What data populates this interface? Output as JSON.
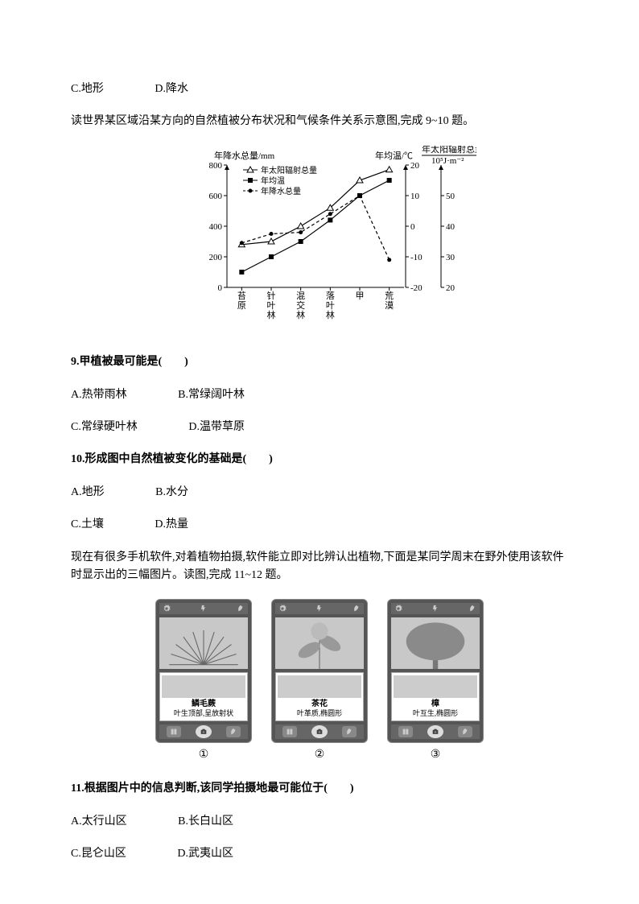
{
  "options_prev": {
    "c": "C.地形",
    "d": "D.降水"
  },
  "intro1": "读世界某区域沿某方向的自然植被分布状况和气候条件关系示意图,完成 9~10 题。",
  "chart": {
    "y1_title": "年降水总量/mm",
    "y2_title": "年均温/℃",
    "y3_title_a": "年太阳辐射总量",
    "y3_title_b": "10⁵J·m⁻²",
    "y1_ticks": [
      "0",
      "200",
      "400",
      "600",
      "800"
    ],
    "y2_ticks": [
      "-20",
      "-10",
      "0",
      "10",
      "20"
    ],
    "y3_ticks": [
      "20",
      "30",
      "40",
      "50"
    ],
    "x_labels": [
      "苔原",
      "针叶林",
      "混交林",
      "落叶林",
      "甲",
      "荒漠"
    ],
    "legend": [
      "年太阳辐射总量",
      "年均温",
      "年降水总量"
    ],
    "colors": {
      "axis": "#000",
      "radiation": "#000",
      "temp": "#000",
      "precip": "#000",
      "bg": "#ffffff"
    },
    "radiation_pts": [
      [
        0,
        280
      ],
      [
        1,
        300
      ],
      [
        2,
        400
      ],
      [
        3,
        520
      ],
      [
        4,
        700
      ],
      [
        5,
        770
      ]
    ],
    "temp_pts": [
      [
        0,
        100
      ],
      [
        1,
        200
      ],
      [
        2,
        300
      ],
      [
        3,
        440
      ],
      [
        4,
        600
      ],
      [
        5,
        700
      ]
    ],
    "precip_pts": [
      [
        0,
        290
      ],
      [
        1,
        350
      ],
      [
        2,
        360
      ],
      [
        3,
        480
      ],
      [
        4,
        600
      ],
      [
        5,
        180
      ]
    ],
    "y1_range": [
      0,
      800
    ],
    "y3_range": [
      20,
      60
    ],
    "font_size": 11
  },
  "q9": {
    "stem": "9.甲植被最可能是(　　)",
    "a": "A.热带雨林",
    "b": "B.常绿阔叶林",
    "c": "C.常绿硬叶林",
    "d": "D.温带草原"
  },
  "q10": {
    "stem": "10.形成图中自然植被变化的基础是(　　)",
    "a": "A.地形",
    "b": "B.水分",
    "c": "C.土壤",
    "d": "D.热量"
  },
  "intro2": "现在有很多手机软件,对着植物拍摄,软件能立即对比辨认出植物,下面是某同学周末在野外使用该软件时显示出的三幅图片。读图,完成 11~12 题。",
  "phones": [
    {
      "label": "①",
      "name": "鳞毛蕨",
      "desc": "叶生顶部,呈放射状"
    },
    {
      "label": "②",
      "name": "茶花",
      "desc": "叶革质,椭圆形"
    },
    {
      "label": "③",
      "name": "樟",
      "desc": "叶互生,椭圆形"
    }
  ],
  "q11": {
    "stem": "11.根据图片中的信息判断,该同学拍摄地最可能位于(　　)",
    "a": "A.太行山区",
    "b": "B.长白山区",
    "c": "C.昆仑山区",
    "d": "D.武夷山区"
  }
}
